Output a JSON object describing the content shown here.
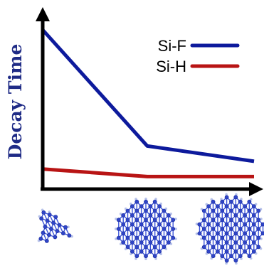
{
  "chart_data": {
    "type": "line",
    "title": "",
    "xlabel": "",
    "ylabel": "Decay Time",
    "x": [
      "small",
      "medium",
      "large"
    ],
    "x_markers": [
      {
        "name": "small-nanocrystal-icon"
      },
      {
        "name": "medium-nanocrystal-icon"
      },
      {
        "name": "large-nanocrystal-icon"
      }
    ],
    "ylim": [
      0,
      10
    ],
    "grid": false,
    "axis_ticks": false,
    "legend_position": "top-right",
    "series": [
      {
        "name": "Si-F",
        "color": "#0d1a9c",
        "values": [
          10.0,
          2.4,
          1.4
        ]
      },
      {
        "name": "Si-H",
        "color": "#b81414",
        "values": [
          0.9,
          0.4,
          0.4
        ]
      }
    ]
  },
  "colors": {
    "axis": "#000000",
    "ylabel": "#1f2b86",
    "atom_fill": "#2f45c8",
    "atom_stroke": "#1a2a99",
    "bond": "#3c54d8",
    "surface_atom": "#b7c2ea"
  }
}
